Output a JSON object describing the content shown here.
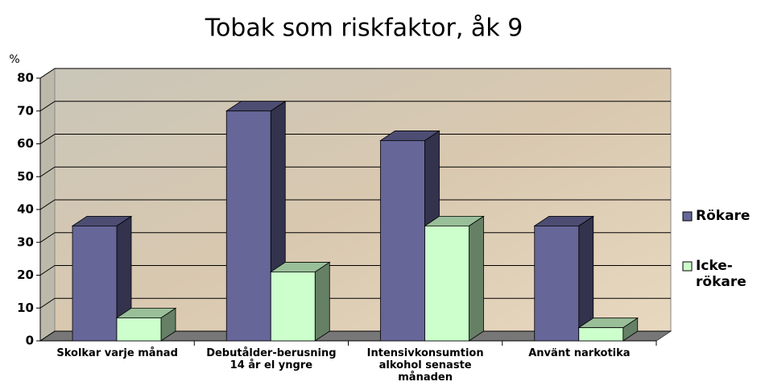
{
  "chart_data": {
    "type": "bar3d",
    "title": "Tobak som riskfaktor, åk 9",
    "y_label": "%",
    "categories": [
      "Skolkar varje månad",
      "Debutålder-berusning 14 år el yngre",
      "Intensivkonsumtion alkohol senaste månaden",
      "Använt narkotika"
    ],
    "series": [
      {
        "name": "Rökare",
        "color": "#666699",
        "values": [
          35,
          70,
          61,
          35
        ]
      },
      {
        "name": "Icke-rökare",
        "color": "#ccffcc",
        "values": [
          7,
          21,
          35,
          4
        ]
      }
    ],
    "ylim": [
      0,
      80
    ],
    "yticks": [
      0,
      10,
      20,
      30,
      40,
      50,
      60,
      70,
      80
    ],
    "grid": true,
    "legend": "right"
  }
}
